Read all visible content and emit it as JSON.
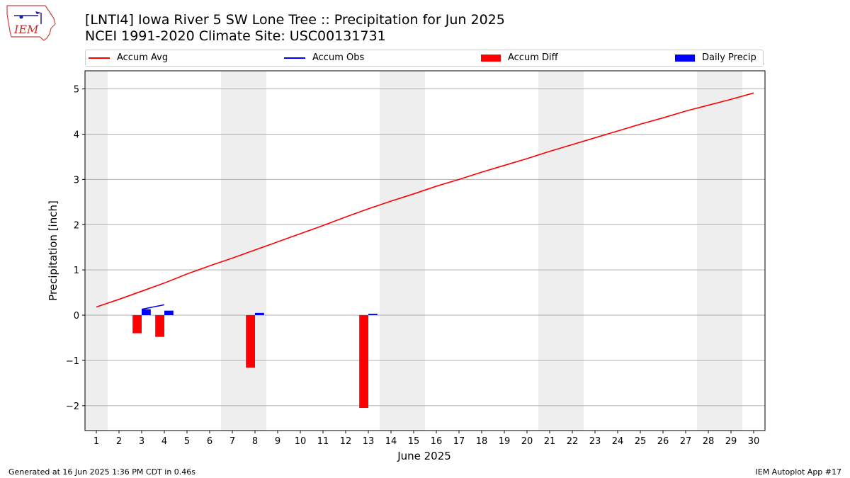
{
  "title_line1": "[LNTI4] Iowa River 5 SW Lone Tree :: Precipitation for Jun 2025",
  "title_line2": "NCEI 1991-2020 Climate Site: USC00131731",
  "footer_left": "Generated at 16 Jun 2025 1:36 PM CDT in 0.46s",
  "footer_right": "IEM Autoplot App #17",
  "logo_text": "IEM",
  "colors": {
    "avg": "#ff0000",
    "obs": "#0000ff",
    "diff": "#ff0000",
    "daily": "#0000ff",
    "weekend": "#eeeeee",
    "grid": "#b0b0b0"
  },
  "chart_data": {
    "type": "bar",
    "xlabel": "June 2025",
    "ylabel": "Precipitation [inch]",
    "xlim": [
      0.5,
      30.5
    ],
    "ylim": [
      -2.55,
      5.4
    ],
    "yticks": [
      -2,
      -1,
      0,
      1,
      2,
      3,
      4,
      5
    ],
    "ytick_labels": [
      "−2",
      "−1",
      "0",
      "1",
      "2",
      "3",
      "4",
      "5"
    ],
    "x": [
      1,
      2,
      3,
      4,
      5,
      6,
      7,
      8,
      9,
      10,
      11,
      12,
      13,
      14,
      15,
      16,
      17,
      18,
      19,
      20,
      21,
      22,
      23,
      24,
      25,
      26,
      27,
      28,
      29,
      30
    ],
    "weekend_days": [
      1,
      7,
      8,
      14,
      15,
      21,
      22,
      28,
      29
    ],
    "legend": [
      "Accum Avg",
      "Accum Obs",
      "Accum Diff",
      "Daily Precip"
    ],
    "series": [
      {
        "name": "Accum Avg",
        "kind": "line",
        "x": [
          1,
          2,
          3,
          4,
          5,
          6,
          7,
          8,
          9,
          10,
          11,
          12,
          13,
          14,
          15,
          16,
          17,
          18,
          19,
          20,
          21,
          22,
          23,
          24,
          25,
          26,
          27,
          28,
          29,
          30
        ],
        "values": [
          0.18,
          0.35,
          0.53,
          0.71,
          0.91,
          1.09,
          1.26,
          1.44,
          1.62,
          1.8,
          1.98,
          2.17,
          2.35,
          2.52,
          2.68,
          2.85,
          3.0,
          3.16,
          3.31,
          3.46,
          3.62,
          3.77,
          3.92,
          4.07,
          4.22,
          4.36,
          4.51,
          4.64,
          4.77,
          4.91
        ]
      },
      {
        "name": "Accum Obs",
        "kind": "line",
        "x": [
          3,
          4
        ],
        "values": [
          0.13,
          0.23
        ]
      },
      {
        "name": "Accum Diff",
        "kind": "bar",
        "x": [
          3,
          4,
          8,
          13
        ],
        "values": [
          -0.4,
          -0.48,
          -1.16,
          -2.05
        ]
      },
      {
        "name": "Daily Precip",
        "kind": "bar",
        "x": [
          3,
          4,
          8,
          13
        ],
        "values": [
          0.13,
          0.1,
          0.05,
          0.03
        ]
      }
    ]
  }
}
